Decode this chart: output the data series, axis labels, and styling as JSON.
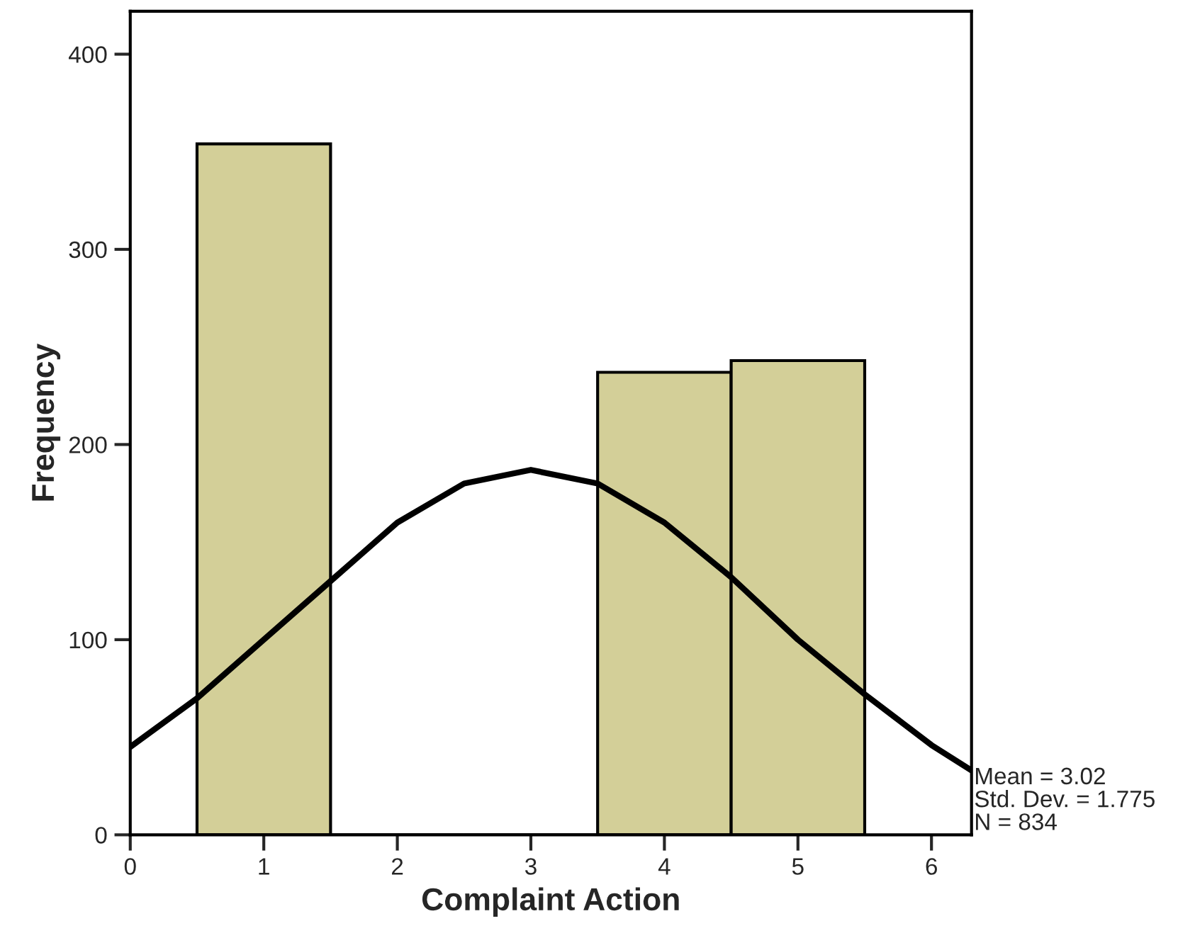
{
  "chart_data": {
    "type": "histogram",
    "xlabel": "Complaint Action",
    "ylabel": "Frequency",
    "bins": [
      0.5,
      1.5,
      2.5,
      3.5,
      4.5,
      5.5
    ],
    "values": [
      354,
      0,
      0,
      237,
      243
    ],
    "color": "#d3cf98",
    "series": [
      {
        "type": "line",
        "color": "#000000",
        "x": [
          0,
          0.5,
          1,
          1.5,
          2,
          2.5,
          3,
          3.5,
          4,
          4.5,
          5,
          5.5,
          6,
          6.3
        ],
        "values": [
          45,
          70,
          100,
          130,
          160,
          180,
          187,
          180,
          160,
          132,
          100,
          72,
          46,
          33
        ]
      }
    ],
    "xlim": [
      0,
      6.3
    ],
    "ylim": [
      0,
      422
    ],
    "xticks": [
      0,
      1,
      2,
      3,
      4,
      5,
      6
    ],
    "yticks": [
      0,
      100,
      200,
      300,
      400
    ],
    "grid": false,
    "legend": false,
    "annotations": [
      "Mean = 3.02\nStd. Dev. = 1.775\nN = 834"
    ]
  }
}
